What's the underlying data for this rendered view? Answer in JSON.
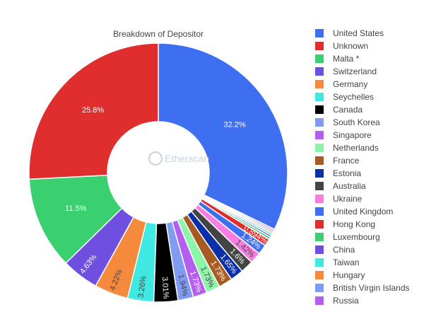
{
  "chart_data": {
    "type": "pie",
    "title": "Breakdown of Depositor",
    "hole": true,
    "legend_position": "right",
    "watermark": "Etherscan",
    "categories": [
      "United States",
      "Unknown",
      "Malta *",
      "Switzerland",
      "Germany",
      "Seychelles",
      "Canada",
      "South Korea",
      "Singapore",
      "Netherlands",
      "France",
      "Estonia",
      "Australia",
      "Ukraine",
      "United Kingdom",
      "Hong Kong",
      "Luxembourg",
      "China",
      "Taiwan",
      "Hungary",
      "British Virgin Islands",
      "Russia"
    ],
    "pie_order": [
      "United States",
      "Russia",
      "British Virgin Islands",
      "Hungary",
      "Taiwan",
      "China",
      "Luxembourg",
      "Hong Kong",
      "United Kingdom",
      "Ukraine",
      "Australia",
      "Estonia",
      "France",
      "Netherlands",
      "Singapore",
      "South Korea",
      "Canada",
      "Seychelles",
      "Germany",
      "Switzerland",
      "Malta *",
      "Unknown"
    ],
    "values": {
      "United States": 32.2,
      "Unknown": 25.8,
      "Malta *": 11.5,
      "Switzerland": 4.63,
      "Germany": 4.22,
      "Seychelles": 3.26,
      "Canada": 3.01,
      "South Korea": 1.94,
      "Singapore": 1.73,
      "Netherlands": 1.73,
      "France": 1.73,
      "Estonia": 1.65,
      "Australia": 1.6,
      "Ukraine": 1.42,
      "United Kingdom": 1.24,
      "Hong Kong": 0.894,
      "Luxembourg": 0.3,
      "China": 0.25,
      "Taiwan": 0.25,
      "Hungary": 0.2,
      "British Virgin Islands": 0.2,
      "Russia": 0.2
    },
    "labels": {
      "United States": "32.2%",
      "Unknown": "25.8%",
      "Malta *": "11.5%",
      "Switzerland": "4.63%",
      "Germany": "4.22%",
      "Seychelles": "3.26%",
      "Canada": "3.01%",
      "South Korea": "1.94%",
      "Singapore": "1.73%",
      "Netherlands": "1.73%",
      "France": "1.73%",
      "Estonia": "1.65%",
      "Australia": "1.6%",
      "Ukraine": "1.42%",
      "United Kingdom": "1.24%",
      "Hong Kong": "0.894%"
    },
    "colors": {
      "United States": "#3d6ff0",
      "Unknown": "#e02d2d",
      "Malta *": "#3ad070",
      "Switzerland": "#6f4fe0",
      "Germany": "#f58a3c",
      "Seychelles": "#3fe8e0",
      "Canada": "#000000",
      "South Korea": "#7f9cf2",
      "Singapore": "#b45ef0",
      "Netherlands": "#8cf5a9",
      "France": "#a85b21",
      "Estonia": "#0a2fa8",
      "Australia": "#444444",
      "Ukraine": "#f77ee0",
      "United Kingdom": "#3d6ff0",
      "Hong Kong": "#e02d2d",
      "Luxembourg": "#3ad070",
      "China": "#6f4fe0",
      "Taiwan": "#3fe8e0",
      "Hungary": "#f58a3c",
      "British Virgin Islands": "#7f9cf2",
      "Russia": "#b45ef0"
    }
  }
}
